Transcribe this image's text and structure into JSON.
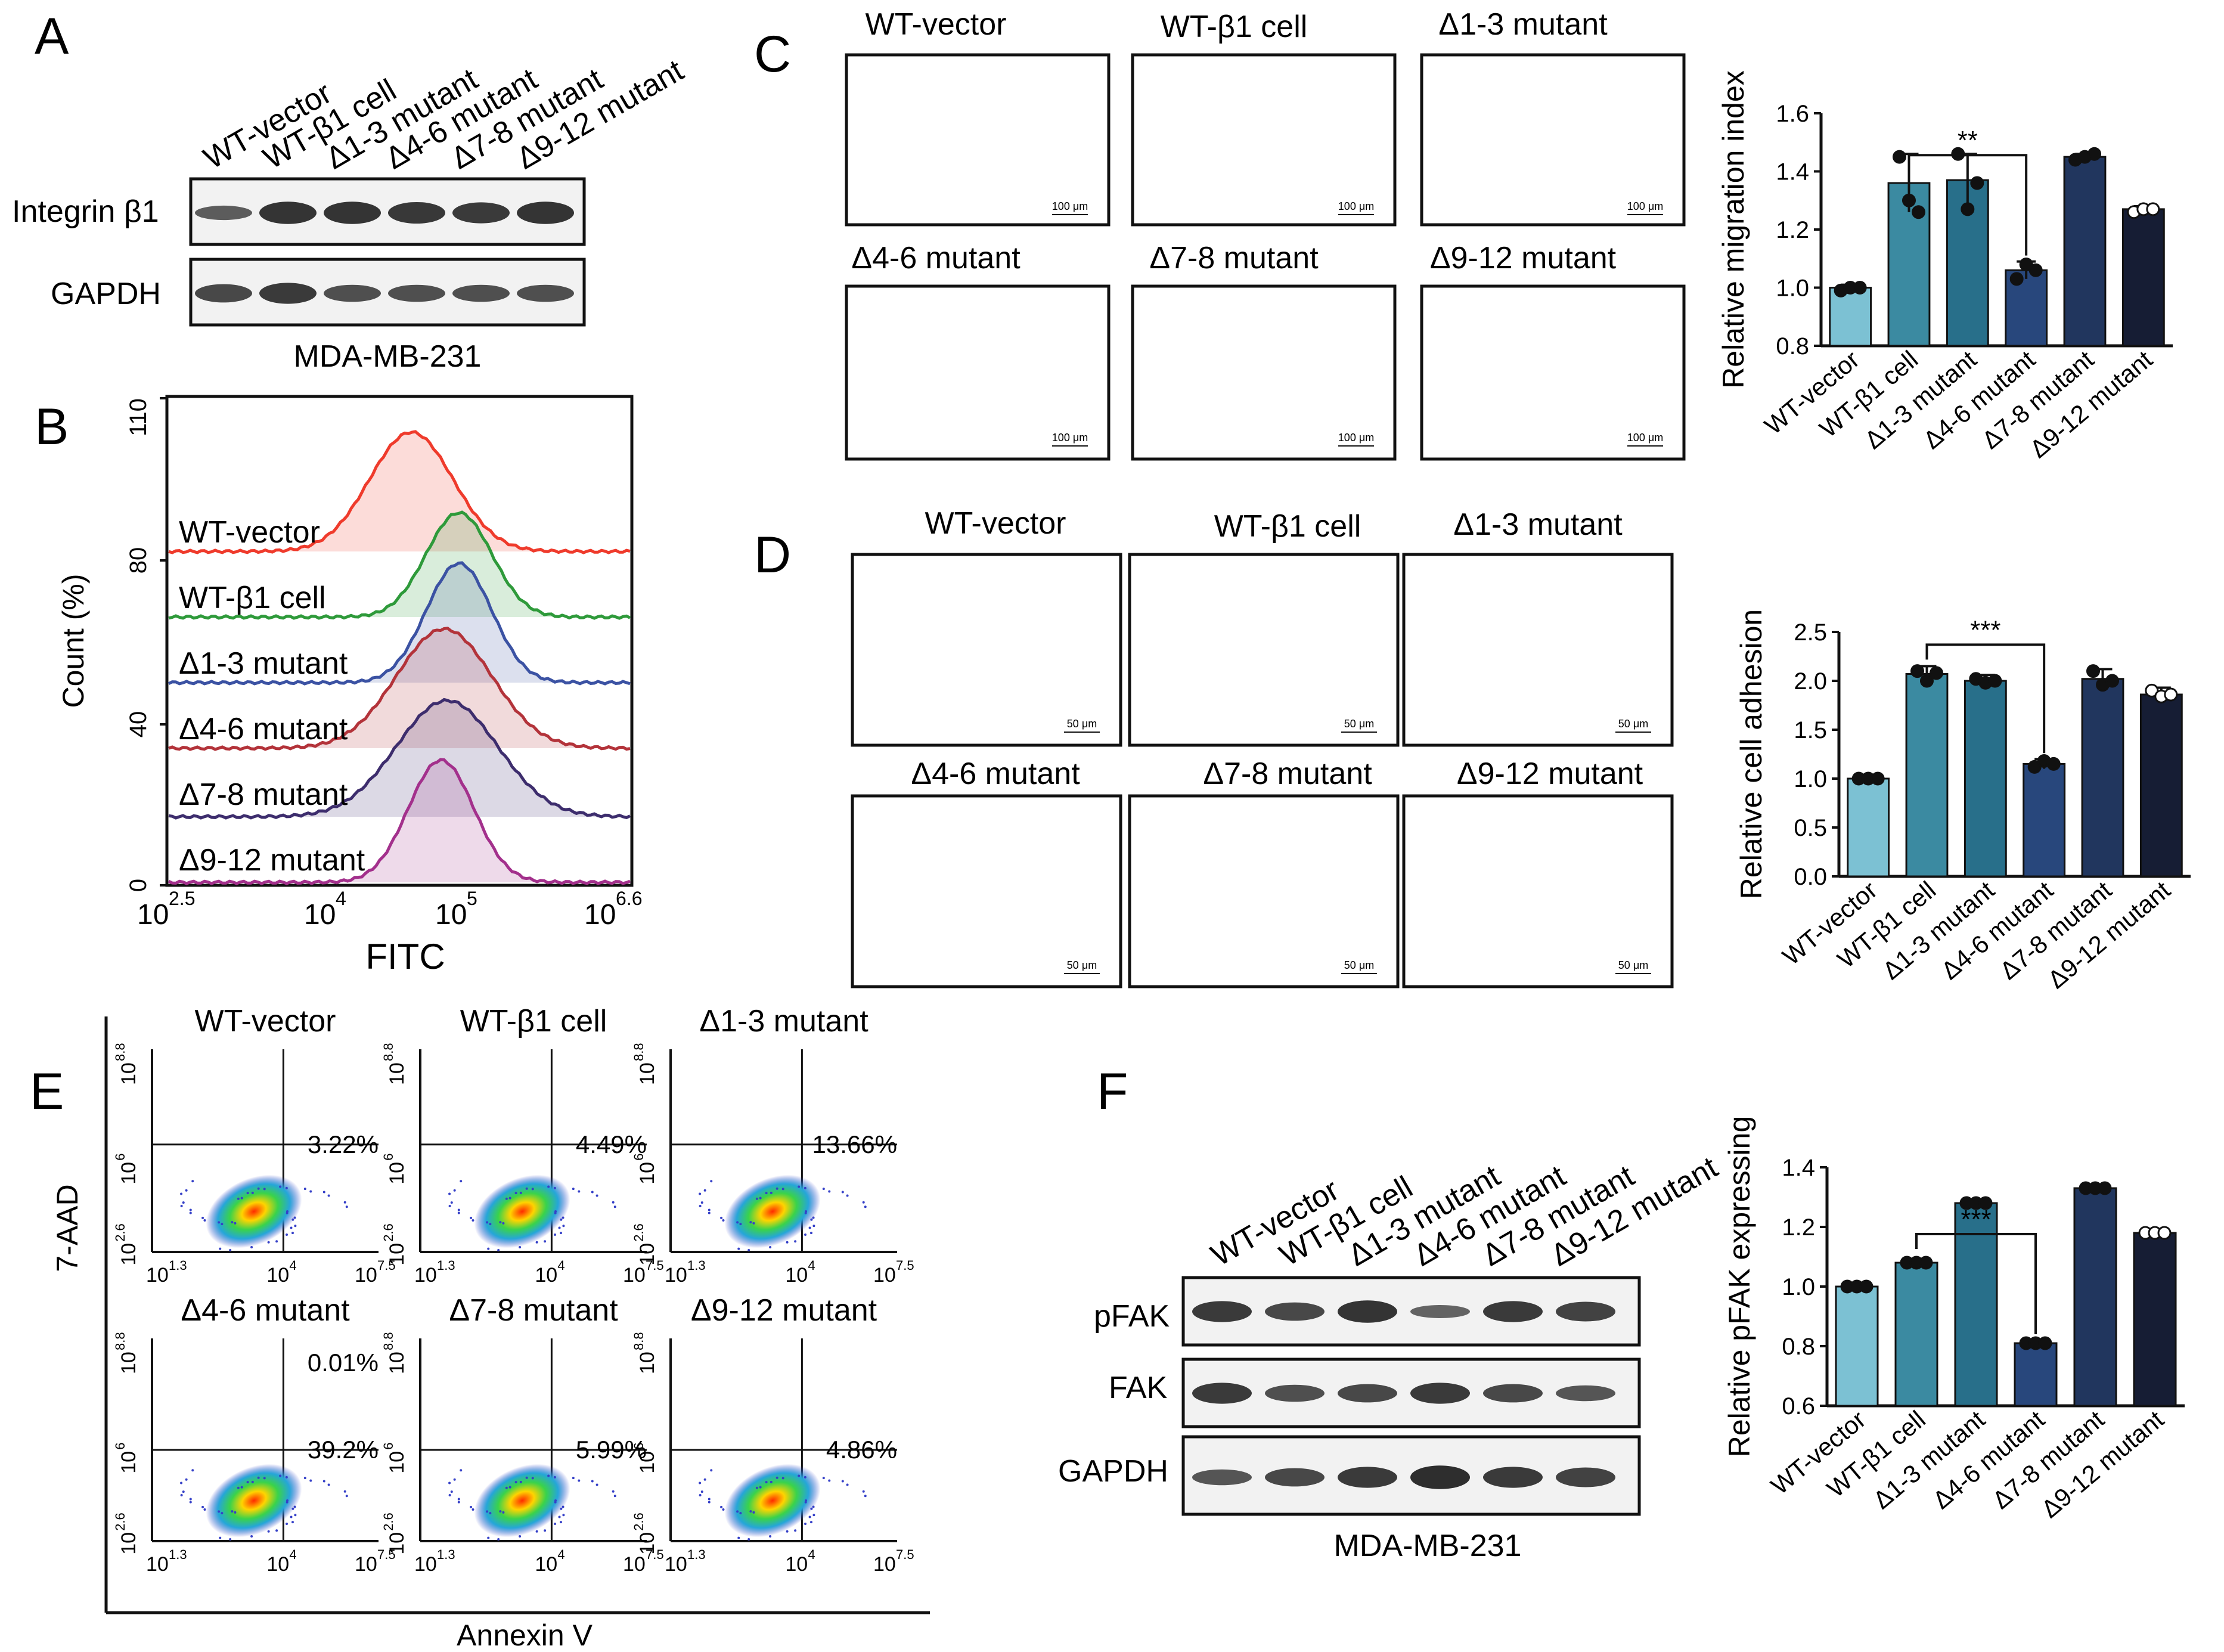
{
  "figure": {
    "panels": {
      "A": "A",
      "B": "B",
      "C": "C",
      "D": "D",
      "E": "E",
      "F": "F"
    }
  },
  "groups": [
    "WT-vector",
    "WT-β1 cell",
    "Δ1-3 mutant",
    "Δ4-6 mutant",
    "Δ7-8 mutant",
    "Δ9-12 mutant"
  ],
  "colors": {
    "bars": [
      "#7cc1d3",
      "#3b8aa1",
      "#286f8a",
      "#28477c",
      "#21365e",
      "#161d34"
    ],
    "hist": [
      "#ef3b2c",
      "#2e9a3a",
      "#3b52a3",
      "#b3333a",
      "#3d2d6d",
      "#a3308c"
    ],
    "wb_bg": "#f2f2f2",
    "crystal": "#5b4aa8",
    "adhesion_bg": "#9a9a9a"
  },
  "panelA": {
    "lanes": [
      "WT-vector",
      "WT-β1 cell",
      "Δ1-3 mutant",
      "Δ4-6 mutant",
      "Δ7-8 mutant",
      "Δ9-12 mutant"
    ],
    "rows": [
      "Integrin β1",
      "GAPDH"
    ],
    "cell_line": "MDA-MB-231"
  },
  "panelB": {
    "ylabel": "Count (%)",
    "xlabel": "FITC",
    "yticks": [
      "0",
      "40",
      "80",
      "110"
    ],
    "xticks": [
      "10",
      "2.5",
      "10",
      "4",
      "10",
      "5",
      "10",
      "6.6"
    ],
    "labels": [
      "WT-vector",
      "WT-β1 cell",
      "Δ1-3 mutant",
      "Δ4-6 mutant",
      "Δ7-8 mutant",
      "Δ9-12 mutant"
    ]
  },
  "panelC": {
    "titles": [
      "WT-vector",
      "WT-β1 cell",
      "Δ1-3 mutant",
      "Δ4-6 mutant",
      "Δ7-8 mutant",
      "Δ9-12 mutant"
    ],
    "scale": "100 μm"
  },
  "panelD": {
    "titles": [
      "WT-vector",
      "WT-β1 cell",
      "Δ1-3 mutant",
      "Δ4-6 mutant",
      "Δ7-8 mutant",
      "Δ9-12 mutant"
    ],
    "scale": "50 μm"
  },
  "panelE": {
    "titles": [
      "WT-vector",
      "WT-β1 cell",
      "Δ1-3 mutant",
      "Δ4-6 mutant",
      "Δ7-8 mutant",
      "Δ9-12 mutant"
    ],
    "percentages": [
      "3.22%",
      "4.49%",
      "13.66%",
      "39.2%",
      "5.99%",
      "4.86%"
    ],
    "upper_pct_d46": "0.01%",
    "ylabel": "7-AAD",
    "xlabel": "Annexin V",
    "yticks_sup": [
      "8.8",
      "6",
      "2.6"
    ],
    "xticks_sup": [
      "1.3",
      "4",
      "7.5"
    ]
  },
  "panelF": {
    "lanes": [
      "WT-vector",
      "WT-β1 cell",
      "Δ1-3 mutant",
      "Δ4-6 mutant",
      "Δ7-8 mutant",
      "Δ9-12 mutant"
    ],
    "rows": [
      "pFAK",
      "FAK",
      "GAPDH"
    ],
    "cell_line": "MDA-MB-231"
  },
  "chart_data": [
    {
      "id": "C-bar",
      "type": "bar",
      "title": "",
      "xlabel": "",
      "ylabel": "Relative migration index",
      "categories": [
        "WT-vector",
        "WT-β1 cell",
        "Δ1-3 mutant",
        "Δ4-6 mutant",
        "Δ7-8 mutant",
        "Δ9-12 mutant"
      ],
      "values": [
        1.0,
        1.36,
        1.37,
        1.06,
        1.45,
        1.27
      ],
      "errors": [
        0.01,
        0.1,
        0.09,
        0.03,
        0.01,
        0.01
      ],
      "points": [
        [
          0.99,
          1.0,
          1.0
        ],
        [
          1.45,
          1.3,
          1.26
        ],
        [
          1.46,
          1.27,
          1.36
        ],
        [
          1.03,
          1.08,
          1.06
        ],
        [
          1.44,
          1.45,
          1.46
        ],
        [
          1.26,
          1.27,
          1.27
        ]
      ],
      "ylim": [
        0.8,
        1.6
      ],
      "yticks": [
        "0.8",
        "1.0",
        "1.2",
        "1.4",
        "1.6"
      ],
      "significance": {
        "from": 1,
        "to": 3,
        "label": "**"
      }
    },
    {
      "id": "D-bar",
      "type": "bar",
      "title": "",
      "xlabel": "",
      "ylabel": "Relative cell adhesion",
      "categories": [
        "WT-vector",
        "WT-β1 cell",
        "Δ1-3 mutant",
        "Δ4-6 mutant",
        "Δ7-8 mutant",
        "Δ9-12 mutant"
      ],
      "values": [
        1.0,
        2.07,
        2.0,
        1.15,
        2.02,
        1.86
      ],
      "errors": [
        0.01,
        0.08,
        0.06,
        0.05,
        0.1,
        0.07
      ],
      "points": [
        [
          1.0,
          1.0,
          1.0
        ],
        [
          2.1,
          2.0,
          2.08
        ],
        [
          2.02,
          1.98,
          2.0
        ],
        [
          1.12,
          1.18,
          1.15
        ],
        [
          2.1,
          1.96,
          2.0
        ],
        [
          1.9,
          1.84,
          1.86
        ]
      ],
      "ylim": [
        0.0,
        2.5
      ],
      "yticks": [
        "0.0",
        "0.5",
        "1.0",
        "1.5",
        "2.0",
        "2.5"
      ],
      "significance": {
        "from": 1,
        "to": 3,
        "label": "***"
      }
    },
    {
      "id": "F-bar",
      "type": "bar",
      "title": "",
      "xlabel": "",
      "ylabel": "Relative pFAK expressing",
      "categories": [
        "WT-vector",
        "WT-β1 cell",
        "Δ1-3 mutant",
        "Δ4-6 mutant",
        "Δ7-8 mutant",
        "Δ9-12 mutant"
      ],
      "values": [
        1.0,
        1.08,
        1.28,
        0.81,
        1.33,
        1.18
      ],
      "errors": [
        0.005,
        0.01,
        0.005,
        0.01,
        0.01,
        0.01
      ],
      "points": [
        [
          1.0,
          1.0,
          1.0
        ],
        [
          1.08,
          1.08,
          1.08
        ],
        [
          1.28,
          1.28,
          1.28
        ],
        [
          0.81,
          0.81,
          0.81
        ],
        [
          1.33,
          1.33,
          1.33
        ],
        [
          1.18,
          1.18,
          1.18
        ]
      ],
      "ylim": [
        0.6,
        1.4
      ],
      "yticks": [
        "0.6",
        "0.8",
        "1.0",
        "1.2",
        "1.4"
      ],
      "significance": {
        "from": 1,
        "to": 3,
        "label": "***"
      }
    }
  ]
}
